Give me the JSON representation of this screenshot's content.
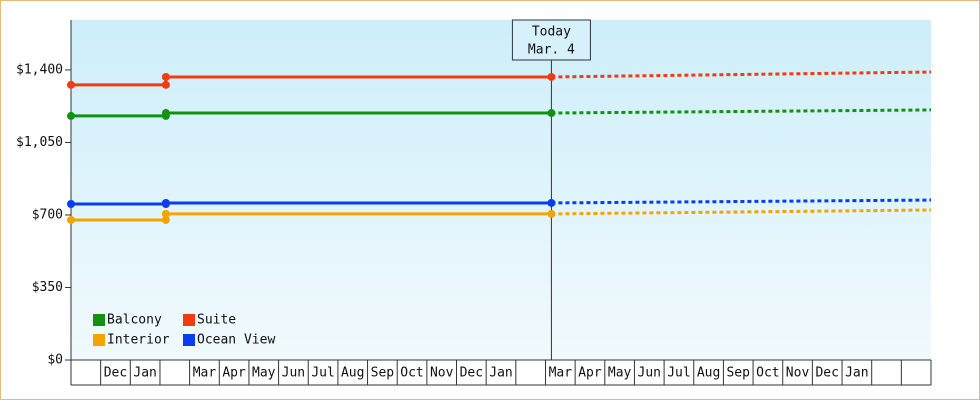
{
  "chart_data": {
    "type": "line",
    "annotation": {
      "title": "Today",
      "date": "Mar. 4",
      "x": 16.2
    },
    "categories": [
      null,
      "Dec",
      "Jan",
      null,
      "Mar",
      "Apr",
      "May",
      "Jun",
      "Jul",
      "Aug",
      "Sep",
      "Oct",
      "Nov",
      "Dec",
      "Jan",
      null,
      "Mar",
      "Apr",
      "May",
      "Jun",
      "Jul",
      "Aug",
      "Sep",
      "Oct",
      "Nov",
      "Dec",
      "Jan",
      null,
      null
    ],
    "xlim": [
      0,
      29
    ],
    "ylim": [
      0,
      1641
    ],
    "yticks": [
      {
        "value": 0,
        "label": "$0"
      },
      {
        "value": 350,
        "label": "$350"
      },
      {
        "value": 700,
        "label": "$700"
      },
      {
        "value": 1050,
        "label": "$1,050"
      },
      {
        "value": 1400,
        "label": "$1,400"
      }
    ],
    "legend": "bottom-left",
    "series": [
      {
        "name": "Balcony",
        "color": "#119311",
        "x": [
          0,
          3.2,
          3.2,
          16.2
        ],
        "values": [
          1178,
          1178,
          1192,
          1192
        ],
        "forecast_x": [
          16.2,
          29
        ],
        "forecast_values": [
          1192,
          1207
        ]
      },
      {
        "name": "Suite",
        "color": "#f03c10",
        "x": [
          0,
          3.2,
          3.2,
          16.2
        ],
        "values": [
          1328,
          1328,
          1366,
          1366
        ],
        "forecast_x": [
          16.2,
          29
        ],
        "forecast_values": [
          1366,
          1390
        ]
      },
      {
        "name": "Interior",
        "color": "#f5a300",
        "x": [
          0,
          3.2,
          3.2,
          16.2
        ],
        "values": [
          676,
          676,
          705,
          705
        ],
        "forecast_x": [
          16.2,
          29
        ],
        "forecast_values": [
          705,
          724
        ]
      },
      {
        "name": "Ocean View",
        "color": "#0a3cf0",
        "x": [
          0,
          3.2,
          3.2,
          16.2
        ],
        "values": [
          753,
          753,
          758,
          758
        ],
        "forecast_x": [
          16.2,
          29
        ],
        "forecast_values": [
          758,
          772
        ]
      }
    ]
  }
}
